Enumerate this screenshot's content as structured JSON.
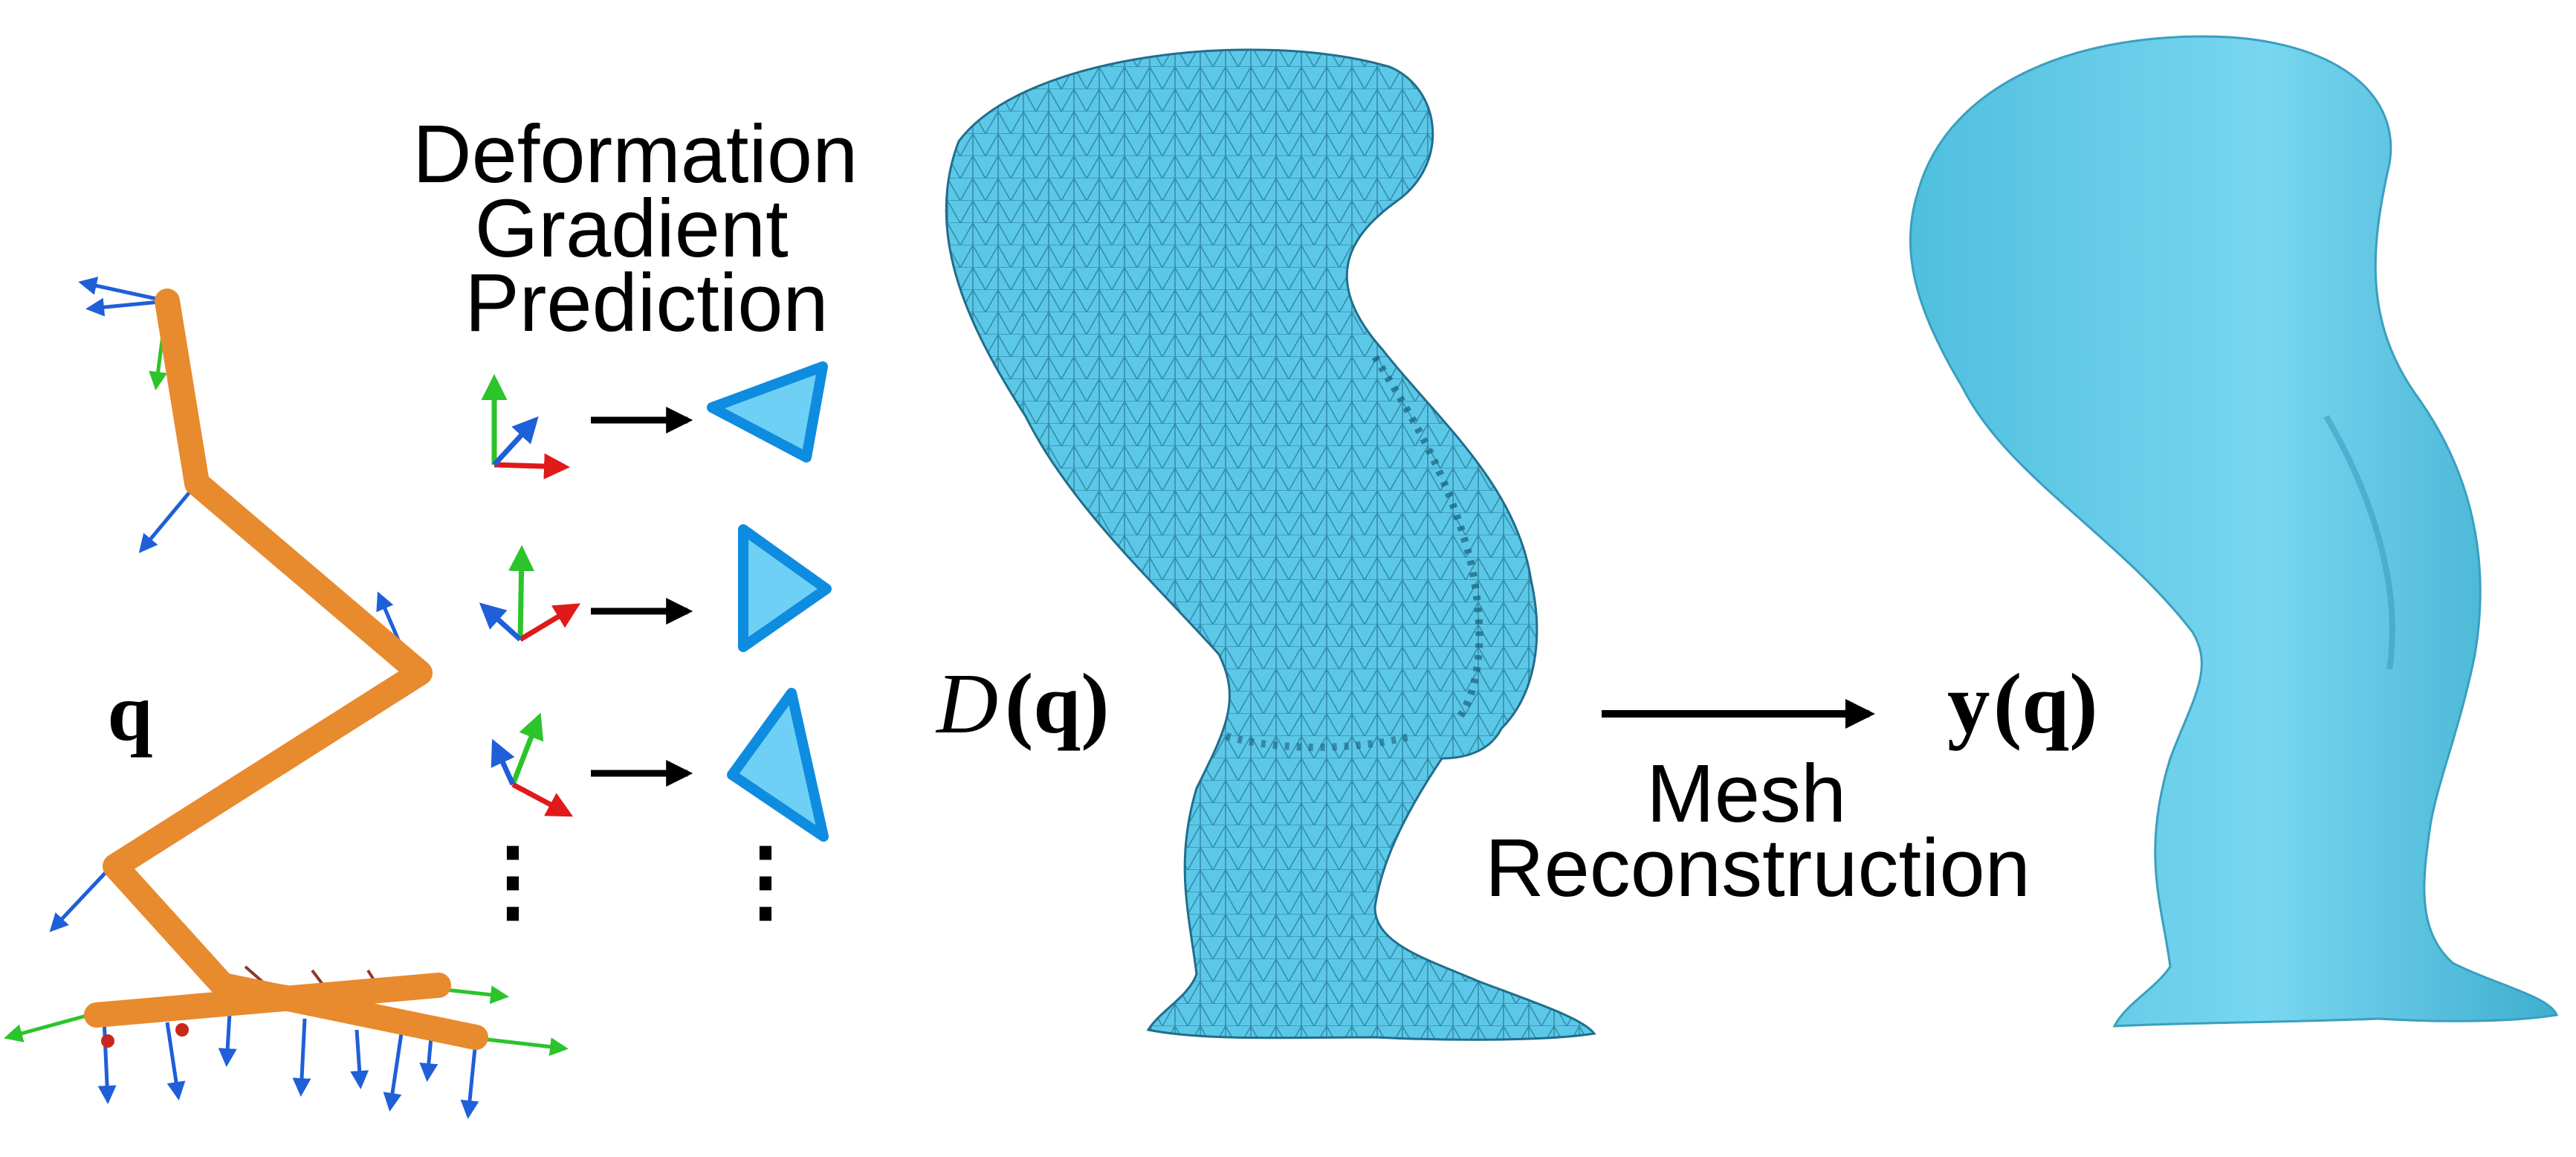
{
  "figure": {
    "title_lines": [
      "Deformation",
      "Gradient",
      "Prediction"
    ],
    "pose_symbol": "q",
    "deformed_mesh_label": {
      "symbol": "D",
      "argument": "(q)"
    },
    "output_mesh_label": {
      "symbol": "y",
      "argument": "(q)"
    },
    "reconstruction_label_lines": [
      "Mesh",
      "Reconstruction"
    ],
    "ellipsis": "⋮",
    "colors": {
      "skeleton": "#E88A2E",
      "mesh_fill": "#5CC8E8",
      "mesh_wire": "#1F6E8C",
      "output_fill": "#6FD2EC",
      "triangle_stroke": "#0E8CE0",
      "triangle_fill": "#6ED0F5",
      "axis_x": "#E01919",
      "axis_y": "#2BC42B",
      "axis_z": "#1F5FD8",
      "arrow": "#000000"
    },
    "icons": [
      "local-frame-icon",
      "triangle-icon",
      "arrow-right-icon"
    ]
  }
}
